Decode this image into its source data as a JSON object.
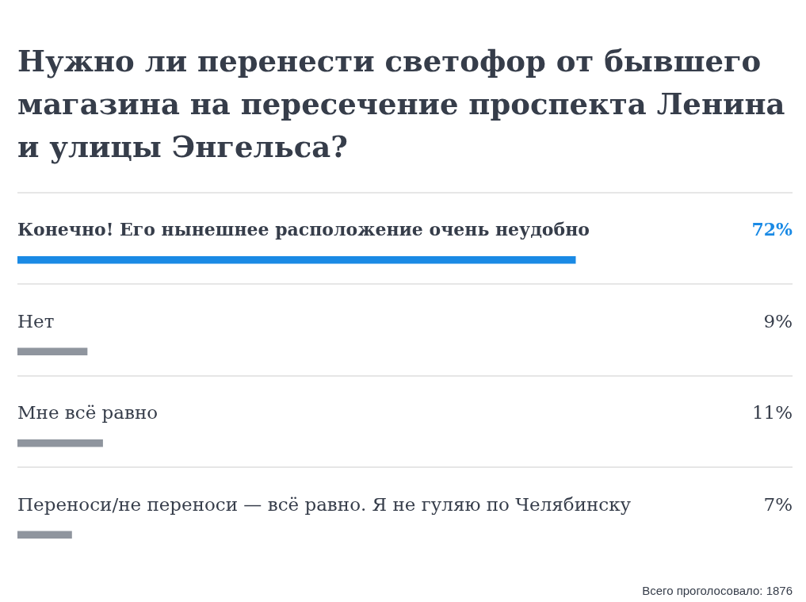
{
  "chart_data": {
    "type": "bar",
    "orientation": "horizontal",
    "title": "Нужно ли перенести светофор от бывшего магазина на пересечение проспекта Ленина и улицы Энгельса?",
    "categories": [
      "Конечно! Его нынешнее расположение очень неудобно",
      "Нет",
      "Мне всё равно",
      "Переноси/не переноси — всё равно. Я не гуляю по Челябинску"
    ],
    "values": [
      72,
      9,
      11,
      7
    ],
    "colors": [
      "#1a8ae5",
      "#8f959e",
      "#8f959e",
      "#8f959e"
    ],
    "value_labels": [
      "72%",
      "9%",
      "11%",
      "7%"
    ],
    "xlim": [
      0,
      100
    ],
    "tick_labels": false,
    "grid": "y",
    "annotations": [
      "Всего проголосовало: 1876"
    ]
  }
}
